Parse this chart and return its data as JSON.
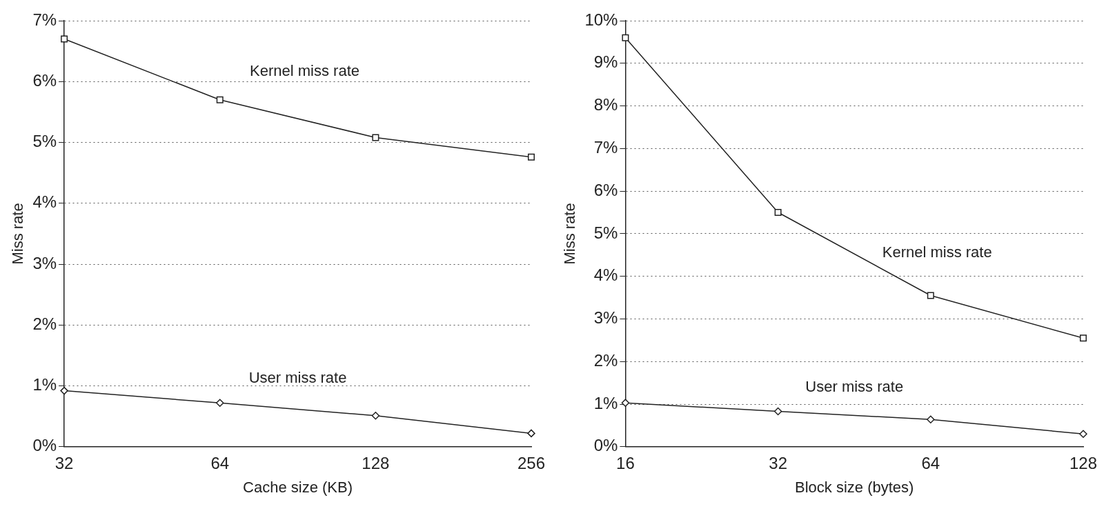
{
  "chart_data": [
    {
      "type": "line",
      "xlabel": "Cache size (KB)",
      "ylabel": "Miss rate",
      "categories": [
        "32",
        "64",
        "128",
        "256"
      ],
      "ylim": [
        0,
        7
      ],
      "yticks": [
        {
          "value": 0,
          "label": "0%"
        },
        {
          "value": 1,
          "label": "1%"
        },
        {
          "value": 2,
          "label": "2%"
        },
        {
          "value": 3,
          "label": "3%"
        },
        {
          "value": 4,
          "label": "4%"
        },
        {
          "value": 5,
          "label": "5%"
        },
        {
          "value": 6,
          "label": "6%"
        },
        {
          "value": 7,
          "label": "7%"
        }
      ],
      "grid": "y",
      "legend": false,
      "line_style": "solid",
      "series": [
        {
          "name": "Kernel miss rate",
          "color": "#222222",
          "marker": "square",
          "values": [
            6.7,
            5.7,
            5.08,
            4.76
          ]
        },
        {
          "name": "User miss rate",
          "color": "#222222",
          "marker": "diamond",
          "values": [
            0.92,
            0.72,
            0.51,
            0.22
          ]
        }
      ]
    },
    {
      "type": "line",
      "xlabel": "Block size (bytes)",
      "ylabel": "Miss rate",
      "categories": [
        "16",
        "32",
        "64",
        "128"
      ],
      "ylim": [
        0,
        10
      ],
      "yticks": [
        {
          "value": 0,
          "label": "0%"
        },
        {
          "value": 1,
          "label": "1%"
        },
        {
          "value": 2,
          "label": "2%"
        },
        {
          "value": 3,
          "label": "3%"
        },
        {
          "value": 4,
          "label": "4%"
        },
        {
          "value": 5,
          "label": "5%"
        },
        {
          "value": 6,
          "label": "6%"
        },
        {
          "value": 7,
          "label": "7%"
        },
        {
          "value": 8,
          "label": "8%"
        },
        {
          "value": 9,
          "label": "9%"
        },
        {
          "value": 10,
          "label": "10%"
        }
      ],
      "grid": "y",
      "legend": false,
      "line_style": "solid",
      "series": [
        {
          "name": "Kernel miss rate",
          "color": "#222222",
          "marker": "square",
          "values": [
            9.6,
            5.5,
            3.55,
            2.55
          ]
        },
        {
          "name": "User miss rate",
          "color": "#222222",
          "marker": "diamond",
          "values": [
            1.03,
            0.83,
            0.64,
            0.3
          ]
        }
      ]
    }
  ]
}
